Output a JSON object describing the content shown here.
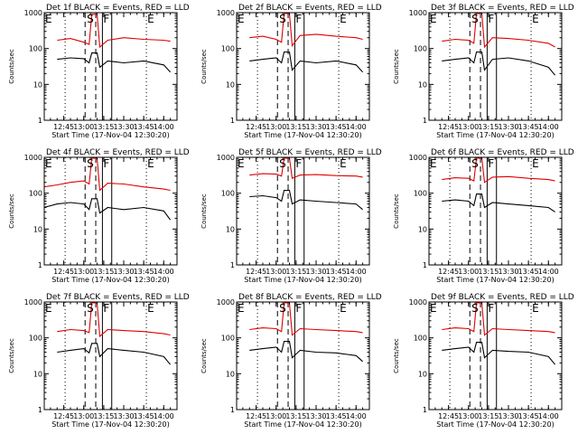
{
  "figure": {
    "start_time_label": "Start Time (17-Nov-04 12:30:20)",
    "ylabel": "Counts/sec"
  },
  "colors": {
    "events": "#000000",
    "lld": "#e00000",
    "background": "#ffffff"
  },
  "markers": {
    "E_left": "E",
    "S": "S",
    "F": "F",
    "E_right": "E"
  },
  "chart_data": [
    {
      "type": "line",
      "title": "Det 1f BLACK = Events, RED = LLD",
      "xlim": [
        "12:30:20",
        "14:10:00"
      ],
      "ylim": [
        1,
        1000
      ],
      "yscale": "log",
      "x_ticks": [
        "12:45",
        "13:00",
        "13:15",
        "13:30",
        "13:45",
        "14:00"
      ],
      "y_ticks": [
        "1",
        "10",
        "100",
        "1000"
      ],
      "series": [
        {
          "key": "events",
          "x": [
            "12:40",
            "12:50",
            "13:00",
            "13:04",
            "13:06",
            "13:10",
            "13:12",
            "13:18",
            "13:30",
            "13:45",
            "14:00",
            "14:05"
          ],
          "y": [
            50,
            55,
            52,
            40,
            75,
            75,
            30,
            45,
            40,
            45,
            35,
            22
          ]
        },
        {
          "key": "lld",
          "x": [
            "12:40",
            "12:50",
            "13:00",
            "13:04",
            "13:06",
            "13:10",
            "13:12",
            "13:18",
            "13:30",
            "13:45",
            "14:00",
            "14:05"
          ],
          "y": [
            170,
            190,
            150,
            130,
            900,
            900,
            110,
            170,
            200,
            180,
            170,
            160
          ]
        }
      ],
      "vlines_dashed": [
        "13:01",
        "13:09"
      ],
      "vlines_solid": [
        "13:14",
        "13:21"
      ],
      "vlines_dotted": [
        "12:46",
        "13:47"
      ]
    },
    {
      "type": "line",
      "title": "Det 2f BLACK = Events, RED = LLD",
      "xlim": [
        "12:30:20",
        "14:10:00"
      ],
      "ylim": [
        1,
        1000
      ],
      "yscale": "log",
      "x_ticks": [
        "12:45",
        "13:00",
        "13:15",
        "13:30",
        "13:45",
        "14:00"
      ],
      "y_ticks": [
        "1",
        "10",
        "100",
        "1000"
      ],
      "series": [
        {
          "key": "events",
          "x": [
            "12:40",
            "12:50",
            "13:00",
            "13:04",
            "13:06",
            "13:10",
            "13:12",
            "13:18",
            "13:30",
            "13:45",
            "14:00",
            "14:05"
          ],
          "y": [
            45,
            50,
            55,
            40,
            80,
            80,
            25,
            45,
            40,
            45,
            35,
            22
          ]
        },
        {
          "key": "lld",
          "x": [
            "12:40",
            "12:50",
            "13:00",
            "13:04",
            "13:06",
            "13:10",
            "13:12",
            "13:18",
            "13:30",
            "13:45",
            "14:00",
            "14:05"
          ],
          "y": [
            200,
            220,
            180,
            150,
            950,
            950,
            120,
            230,
            250,
            220,
            200,
            180
          ]
        }
      ],
      "vlines_dashed": [
        "13:01",
        "13:09"
      ],
      "vlines_solid": [
        "13:14",
        "13:21"
      ],
      "vlines_dotted": [
        "12:46",
        "13:47"
      ]
    },
    {
      "type": "line",
      "title": "Det 3f BLACK = Events, RED = LLD",
      "xlim": [
        "12:30:20",
        "14:10:00"
      ],
      "ylim": [
        1,
        1000
      ],
      "yscale": "log",
      "x_ticks": [
        "12:45",
        "13:00",
        "13:15",
        "13:30",
        "13:45",
        "14:00"
      ],
      "y_ticks": [
        "1",
        "10",
        "100",
        "1000"
      ],
      "series": [
        {
          "key": "events",
          "x": [
            "12:40",
            "12:50",
            "13:00",
            "13:04",
            "13:06",
            "13:10",
            "13:12",
            "13:18",
            "13:30",
            "13:45",
            "14:00",
            "14:05"
          ],
          "y": [
            45,
            50,
            55,
            40,
            80,
            80,
            25,
            50,
            55,
            45,
            30,
            18
          ]
        },
        {
          "key": "lld",
          "x": [
            "12:40",
            "12:50",
            "13:00",
            "13:04",
            "13:06",
            "13:10",
            "13:12",
            "13:18",
            "13:30",
            "13:45",
            "14:00",
            "14:05"
          ],
          "y": [
            160,
            180,
            170,
            140,
            950,
            950,
            110,
            200,
            190,
            170,
            140,
            110
          ]
        }
      ],
      "vlines_dashed": [
        "13:01",
        "13:09"
      ],
      "vlines_solid": [
        "13:14",
        "13:21"
      ],
      "vlines_dotted": [
        "12:46",
        "13:47"
      ]
    },
    {
      "type": "line",
      "title": "Det 4f BLACK = Events, RED = LLD",
      "xlim": [
        "12:30:20",
        "14:10:00"
      ],
      "ylim": [
        1,
        1000
      ],
      "yscale": "log",
      "x_ticks": [
        "12:45",
        "13:00",
        "13:15",
        "13:30",
        "13:45",
        "14:00"
      ],
      "y_ticks": [
        "1",
        "10",
        "100",
        "1000"
      ],
      "series": [
        {
          "key": "events",
          "x": [
            "12:30",
            "12:40",
            "12:50",
            "13:00",
            "13:04",
            "13:06",
            "13:10",
            "13:12",
            "13:18",
            "13:30",
            "13:45",
            "14:00",
            "14:05"
          ],
          "y": [
            40,
            50,
            55,
            50,
            35,
            70,
            70,
            28,
            40,
            35,
            40,
            32,
            18
          ]
        },
        {
          "key": "lld",
          "x": [
            "12:30",
            "12:40",
            "12:50",
            "13:00",
            "13:04",
            "13:06",
            "13:10",
            "13:12",
            "13:18",
            "13:30",
            "13:45",
            "14:00",
            "14:05"
          ],
          "y": [
            150,
            170,
            200,
            220,
            180,
            950,
            950,
            120,
            190,
            180,
            150,
            130,
            120
          ]
        }
      ],
      "vlines_dashed": [
        "13:01",
        "13:09"
      ],
      "vlines_solid": [
        "13:14",
        "13:21"
      ],
      "vlines_dotted": [
        "12:46",
        "13:47"
      ]
    },
    {
      "type": "line",
      "title": "Det 5f BLACK = Events, RED = LLD",
      "xlim": [
        "12:30:20",
        "14:10:00"
      ],
      "ylim": [
        1,
        1000
      ],
      "yscale": "log",
      "x_ticks": [
        "12:45",
        "13:00",
        "13:15",
        "13:30",
        "13:45",
        "14:00"
      ],
      "y_ticks": [
        "1",
        "10",
        "100",
        "1000"
      ],
      "series": [
        {
          "key": "events",
          "x": [
            "12:40",
            "12:50",
            "13:00",
            "13:04",
            "13:06",
            "13:10",
            "13:12",
            "13:18",
            "13:30",
            "13:45",
            "14:00",
            "14:05"
          ],
          "y": [
            80,
            85,
            75,
            60,
            120,
            120,
            50,
            65,
            60,
            55,
            50,
            35
          ]
        },
        {
          "key": "lld",
          "x": [
            "12:40",
            "12:50",
            "13:00",
            "13:04",
            "13:06",
            "13:10",
            "13:12",
            "13:18",
            "13:30",
            "13:45",
            "14:00",
            "14:05"
          ],
          "y": [
            320,
            350,
            340,
            300,
            950,
            950,
            260,
            320,
            330,
            310,
            300,
            280
          ]
        }
      ],
      "vlines_dashed": [
        "13:01",
        "13:09"
      ],
      "vlines_solid": [
        "13:14",
        "13:21"
      ],
      "vlines_dotted": [
        "12:46",
        "13:47"
      ]
    },
    {
      "type": "line",
      "title": "Det 6f BLACK = Events, RED = LLD",
      "xlim": [
        "12:30:20",
        "14:10:00"
      ],
      "ylim": [
        1,
        1000
      ],
      "yscale": "log",
      "x_ticks": [
        "12:45",
        "13:00",
        "13:15",
        "13:30",
        "13:45",
        "14:00"
      ],
      "y_ticks": [
        "1",
        "10",
        "100",
        "1000"
      ],
      "series": [
        {
          "key": "events",
          "x": [
            "12:40",
            "12:50",
            "13:00",
            "13:04",
            "13:06",
            "13:10",
            "13:12",
            "13:18",
            "13:30",
            "13:45",
            "14:00",
            "14:05"
          ],
          "y": [
            60,
            65,
            60,
            45,
            95,
            95,
            40,
            55,
            50,
            45,
            40,
            30
          ]
        },
        {
          "key": "lld",
          "x": [
            "12:40",
            "12:50",
            "13:00",
            "13:04",
            "13:06",
            "13:10",
            "13:12",
            "13:18",
            "13:30",
            "13:45",
            "14:00",
            "14:05"
          ],
          "y": [
            240,
            270,
            260,
            220,
            950,
            950,
            200,
            280,
            290,
            260,
            240,
            220
          ]
        }
      ],
      "vlines_dashed": [
        "13:01",
        "13:09"
      ],
      "vlines_solid": [
        "13:14",
        "13:21"
      ],
      "vlines_dotted": [
        "12:46",
        "13:47"
      ]
    },
    {
      "type": "line",
      "title": "Det 7f BLACK = Events, RED = LLD",
      "xlim": [
        "12:30:20",
        "14:10:00"
      ],
      "ylim": [
        1,
        1000
      ],
      "yscale": "log",
      "x_ticks": [
        "12:45",
        "13:00",
        "13:15",
        "13:30",
        "13:45",
        "14:00"
      ],
      "y_ticks": [
        "1",
        "10",
        "100",
        "1000"
      ],
      "series": [
        {
          "key": "events",
          "x": [
            "12:40",
            "12:50",
            "13:00",
            "13:04",
            "13:06",
            "13:10",
            "13:12",
            "13:18",
            "13:30",
            "13:45",
            "14:00",
            "14:05"
          ],
          "y": [
            40,
            45,
            50,
            38,
            70,
            70,
            30,
            50,
            45,
            40,
            30,
            18
          ]
        },
        {
          "key": "lld",
          "x": [
            "12:40",
            "12:50",
            "13:00",
            "13:04",
            "13:06",
            "13:10",
            "13:12",
            "13:18",
            "13:30",
            "13:45",
            "14:00",
            "14:05"
          ],
          "y": [
            150,
            170,
            160,
            140,
            950,
            950,
            110,
            170,
            160,
            150,
            130,
            120
          ]
        }
      ],
      "vlines_dashed": [
        "13:01",
        "13:09"
      ],
      "vlines_solid": [
        "13:14",
        "13:21"
      ],
      "vlines_dotted": [
        "12:46",
        "13:47"
      ]
    },
    {
      "type": "line",
      "title": "Det 8f BLACK = Events, RED = LLD",
      "xlim": [
        "12:30:20",
        "14:10:00"
      ],
      "ylim": [
        1,
        1000
      ],
      "yscale": "log",
      "x_ticks": [
        "12:45",
        "13:00",
        "13:15",
        "13:30",
        "13:45",
        "14:00"
      ],
      "y_ticks": [
        "1",
        "10",
        "100",
        "1000"
      ],
      "series": [
        {
          "key": "events",
          "x": [
            "12:40",
            "12:50",
            "13:00",
            "13:04",
            "13:06",
            "13:10",
            "13:12",
            "13:18",
            "13:30",
            "13:45",
            "14:00",
            "14:05"
          ],
          "y": [
            45,
            50,
            55,
            40,
            80,
            80,
            28,
            45,
            40,
            38,
            32,
            22
          ]
        },
        {
          "key": "lld",
          "x": [
            "12:40",
            "12:50",
            "13:00",
            "13:04",
            "13:06",
            "13:10",
            "13:12",
            "13:18",
            "13:30",
            "13:45",
            "14:00",
            "14:05"
          ],
          "y": [
            170,
            190,
            180,
            150,
            950,
            950,
            120,
            180,
            170,
            160,
            150,
            140
          ]
        }
      ],
      "vlines_dashed": [
        "13:01",
        "13:09"
      ],
      "vlines_solid": [
        "13:14",
        "13:21"
      ],
      "vlines_dotted": [
        "12:46",
        "13:47"
      ]
    },
    {
      "type": "line",
      "title": "Det 9f BLACK = Events, RED = LLD",
      "xlim": [
        "12:30:20",
        "14:10:00"
      ],
      "ylim": [
        1,
        1000
      ],
      "yscale": "log",
      "x_ticks": [
        "12:45",
        "13:00",
        "13:15",
        "13:30",
        "13:45",
        "14:00"
      ],
      "y_ticks": [
        "1",
        "10",
        "100",
        "1000"
      ],
      "series": [
        {
          "key": "events",
          "x": [
            "12:40",
            "12:50",
            "13:00",
            "13:04",
            "13:06",
            "13:10",
            "13:12",
            "13:18",
            "13:30",
            "13:45",
            "14:00",
            "14:05"
          ],
          "y": [
            45,
            50,
            55,
            40,
            75,
            75,
            28,
            45,
            42,
            40,
            30,
            18
          ]
        },
        {
          "key": "lld",
          "x": [
            "12:40",
            "12:50",
            "13:00",
            "13:04",
            "13:06",
            "13:10",
            "13:12",
            "13:18",
            "13:30",
            "13:45",
            "14:00",
            "14:05"
          ],
          "y": [
            170,
            190,
            180,
            150,
            950,
            950,
            120,
            180,
            170,
            160,
            150,
            140
          ]
        }
      ],
      "vlines_dashed": [
        "13:01",
        "13:09"
      ],
      "vlines_solid": [
        "13:14",
        "13:21"
      ],
      "vlines_dotted": [
        "12:46",
        "13:47"
      ]
    }
  ]
}
